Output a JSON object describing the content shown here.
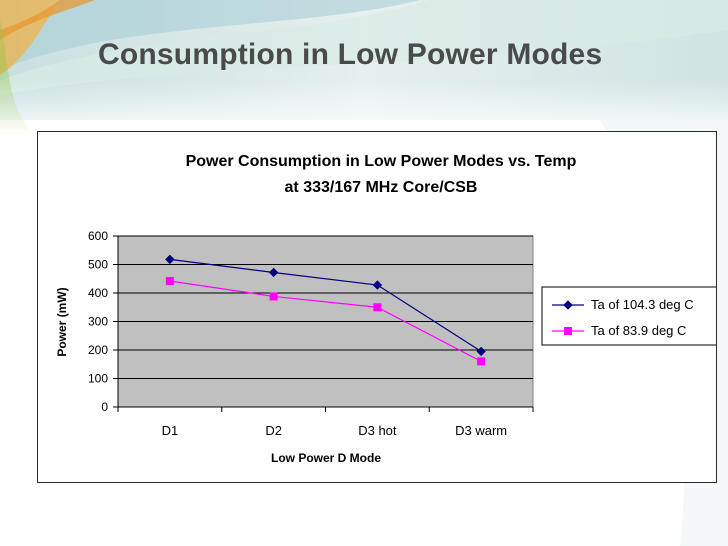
{
  "slide": {
    "title": "Consumption in Low Power Modes"
  },
  "chart_data": {
    "type": "line",
    "title_line1": "Power Consumption in Low Power Modes vs. Temp",
    "title_line2": "at 333/167 MHz Core/CSB",
    "xlabel": "Low Power D Mode",
    "ylabel": "Power (mW)",
    "categories": [
      "D1",
      "D2",
      "D3 hot",
      "D3 warm"
    ],
    "ylim": [
      0,
      600
    ],
    "yticks": [
      "0",
      "100",
      "200",
      "300",
      "400",
      "500",
      "600"
    ],
    "grid": true,
    "legend_position": "right",
    "series": [
      {
        "name": "Ta of 104.3 deg C",
        "values": [
          518,
          472,
          428,
          195
        ],
        "color": "#000080",
        "marker": "diamond"
      },
      {
        "name": "Ta of 83.9 deg C",
        "values": [
          442,
          388,
          350,
          160
        ],
        "color": "#FF00FF",
        "marker": "square"
      }
    ],
    "plot_background": "#C0C0C0"
  }
}
